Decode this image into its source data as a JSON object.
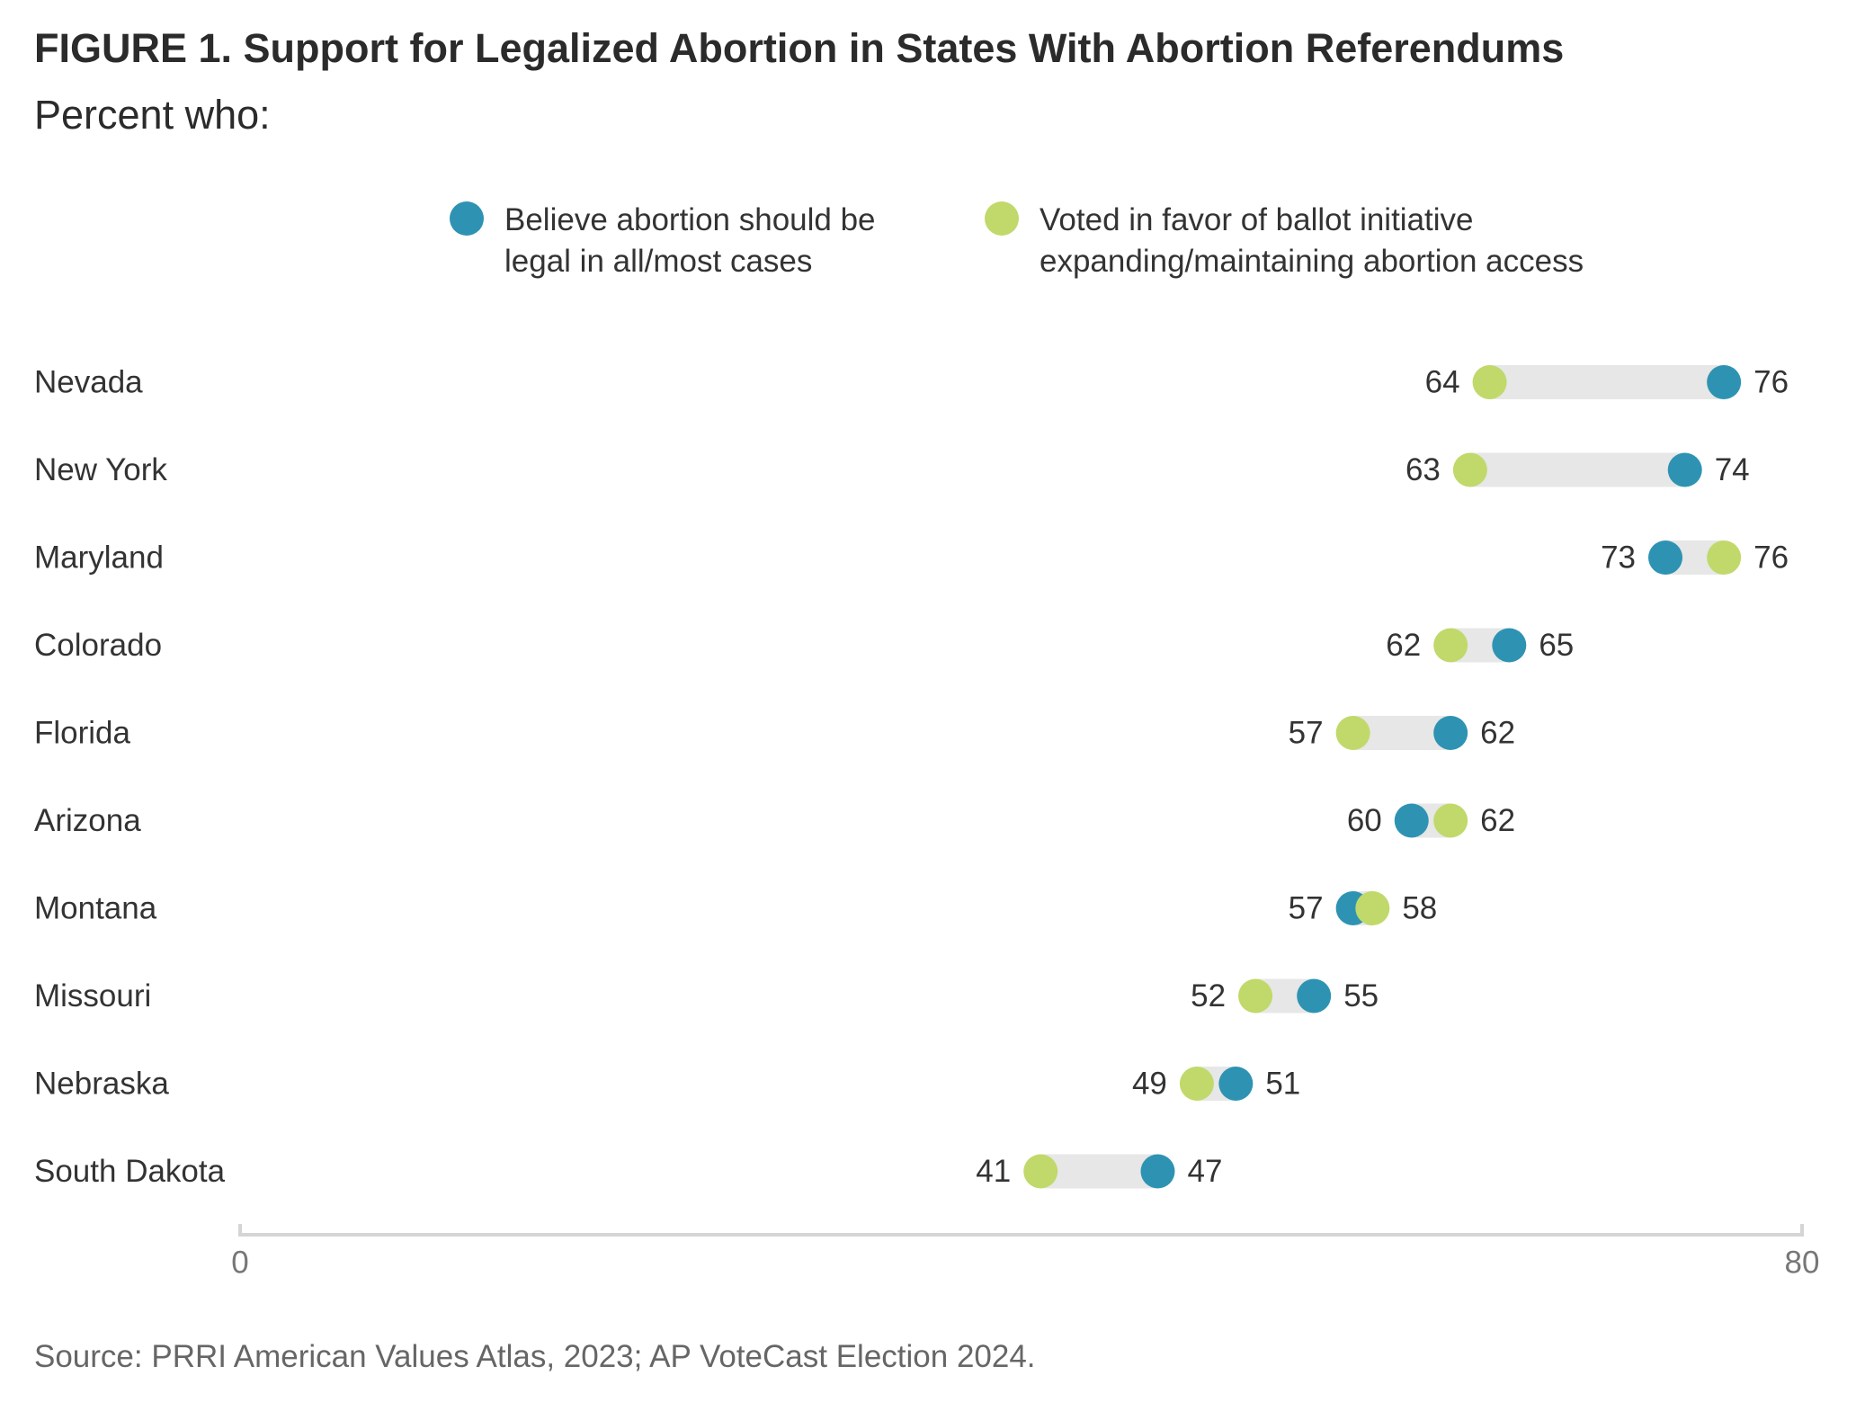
{
  "title": "FIGURE 1.  Support for Legalized Abortion in States With Abortion Referendums",
  "subtitle": "Percent who:",
  "source": "Source: PRRI American Values Atlas, 2023; AP VoteCast Election 2024.",
  "colors": {
    "believe": "#2e93b3",
    "voted": "#c0d96a",
    "range_bar": "#e6e7e6",
    "axis": "#d5d5d5",
    "text": "#333333",
    "axis_text": "#777777"
  },
  "chart_data": {
    "type": "dumbbell",
    "title": "FIGURE 1.  Support for Legalized Abortion in States With Abortion Referendums",
    "subtitle": "Percent who:",
    "xlim": [
      0,
      80
    ],
    "x_ticks": [
      "0",
      "80"
    ],
    "legend_position": "top",
    "series": [
      {
        "key": "believe",
        "name": "Believe abortion should be legal in all/most cases",
        "name_lines": [
          "Believe abortion should be",
          "legal in all/most cases"
        ]
      },
      {
        "key": "voted",
        "name": "Voted in favor of ballot initiative expanding/maintaining abortion access",
        "name_lines": [
          "Voted in favor of ballot initiative",
          "expanding/maintaining abortion access"
        ]
      }
    ],
    "categories": [
      "Nevada",
      "New York",
      "Maryland",
      "Colorado",
      "Florida",
      "Arizona",
      "Montana",
      "Missouri",
      "Nebraska",
      "South Dakota"
    ],
    "believe": [
      76,
      74,
      73,
      65,
      62,
      60,
      57,
      55,
      51,
      47
    ],
    "voted": [
      64,
      63,
      76,
      62,
      57,
      62,
      58,
      52,
      49,
      41
    ]
  }
}
